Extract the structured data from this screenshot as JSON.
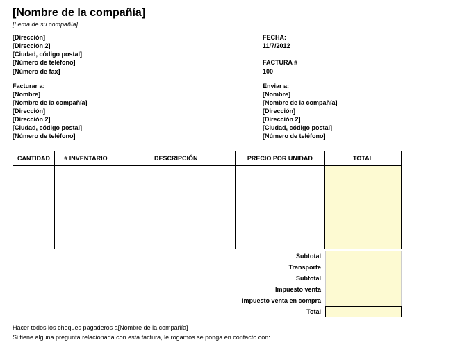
{
  "company": {
    "name": "[Nombre de la compañía]",
    "slogan": "[Lema de su compañía]",
    "address1": "[Dirección]",
    "address2": "[Dirección 2]",
    "city_zip": "[Ciudad, código postal]",
    "phone": "[Número de teléfono]",
    "fax": "[Número de fax]"
  },
  "meta": {
    "date_label": "FECHA:",
    "date_value": "11/7/2012",
    "invoice_label": "FACTURA #",
    "invoice_value": "100"
  },
  "bill_to": {
    "title": "Facturar a:",
    "name": "[Nombre]",
    "company": "[Nombre de la compañía]",
    "address1": "[Dirección]",
    "address2": "[Dirección 2]",
    "city_zip": "[Ciudad, código postal]",
    "phone": "[Número de teléfono]"
  },
  "ship_to": {
    "title": "Enviar a:",
    "name": "[Nombre]",
    "company": "[Nombre de la compañía]",
    "address1": "[Dirección]",
    "address2": "[Dirección 2]",
    "city_zip": "[Ciudad, código postal]",
    "phone": "[Número de teléfono]"
  },
  "table": {
    "headers": {
      "qty": "CANTIDAD",
      "inv": "# INVENTARIO",
      "desc": "DESCRIPCIÓN",
      "price": "PRECIO POR UNIDAD",
      "total": "TOTAL"
    }
  },
  "totals": {
    "subtotal1": "Subtotal",
    "shipping": "Transporte",
    "subtotal2": "Subtotal",
    "tax_sale": "Impuesto venta",
    "tax_purchase": "Impuesto venta en compra",
    "total": "Total"
  },
  "footer": {
    "checks": "Hacer todos los cheques pagaderos a[Nombre de la compañía]",
    "contact": "Si tiene alguna pregunta relacionada con esta factura, le rogamos se ponga en contacto con:"
  },
  "colors": {
    "highlight": "#fdfad2",
    "border": "#000000",
    "text": "#000000"
  }
}
